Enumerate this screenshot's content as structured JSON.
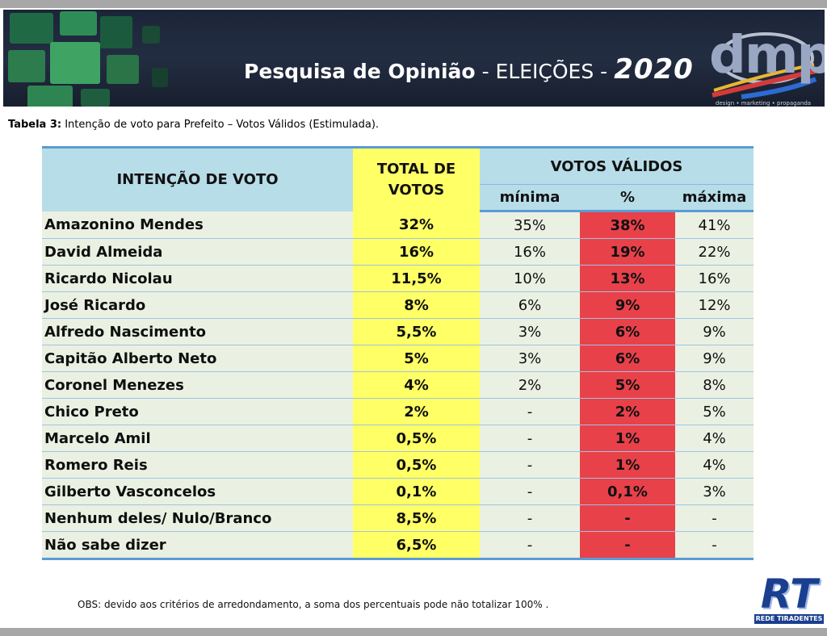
{
  "banner": {
    "title_part1": "Pesquisa de Opinião",
    "title_part2": "- ELEIÇÕES -",
    "title_year": "2020",
    "logo_text": "dmp",
    "logo_tagline": "design • marketing • propaganda"
  },
  "caption": {
    "label": "Tabela 3:",
    "text": " Intenção de voto para Prefeito – Votos Válidos (Estimulada)."
  },
  "table": {
    "header": {
      "candidate": "INTENÇÃO DE VOTO",
      "total_line1": "TOTAL DE",
      "total_line2": "VOTOS",
      "valid_votes": "VOTOS VÁLIDOS",
      "min": "mínima",
      "pct": "%",
      "max": "máxima"
    },
    "rows": [
      {
        "name": "Amazonino Mendes",
        "total": "32%",
        "min": "35%",
        "pct": "38%",
        "max": "41%"
      },
      {
        "name": "David Almeida",
        "total": "16%",
        "min": "16%",
        "pct": "19%",
        "max": "22%"
      },
      {
        "name": "Ricardo Nicolau",
        "total": "11,5%",
        "min": "10%",
        "pct": "13%",
        "max": "16%"
      },
      {
        "name": "José Ricardo",
        "total": "8%",
        "min": "6%",
        "pct": "9%",
        "max": "12%"
      },
      {
        "name": "Alfredo Nascimento",
        "total": "5,5%",
        "min": "3%",
        "pct": "6%",
        "max": "9%"
      },
      {
        "name": "Capitão Alberto Neto",
        "total": "5%",
        "min": "3%",
        "pct": "6%",
        "max": "9%"
      },
      {
        "name": "Coronel Menezes",
        "total": "4%",
        "min": "2%",
        "pct": "5%",
        "max": "8%"
      },
      {
        "name": "Chico Preto",
        "total": "2%",
        "min": "-",
        "pct": "2%",
        "max": "5%"
      },
      {
        "name": "Marcelo Amil",
        "total": "0,5%",
        "min": "-",
        "pct": "1%",
        "max": "4%"
      },
      {
        "name": "Romero Reis",
        "total": "0,5%",
        "min": "-",
        "pct": "1%",
        "max": "4%"
      },
      {
        "name": "Gilberto Vasconcelos",
        "total": "0,1%",
        "min": "-",
        "pct": "0,1%",
        "max": "3%"
      },
      {
        "name": "Nenhum deles/ Nulo/Branco",
        "total": "8,5%",
        "min": "-",
        "pct": "-",
        "max": "-"
      },
      {
        "name": "Não sabe dizer",
        "total": "6,5%",
        "min": "-",
        "pct": "-",
        "max": "-"
      }
    ]
  },
  "footnote": "OBS: devido aos critérios de arredondamento, a soma dos percentuais pode não totalizar 100% .",
  "rt_logo": {
    "letters": "RT",
    "tagline": "REDE TIRADENTES"
  },
  "colors": {
    "header_blue": "#b7dde8",
    "total_yellow": "#ffff66",
    "pct_red": "#e8414a",
    "row_green": "#eaf1e2",
    "banner_navy": "#1c2538"
  }
}
